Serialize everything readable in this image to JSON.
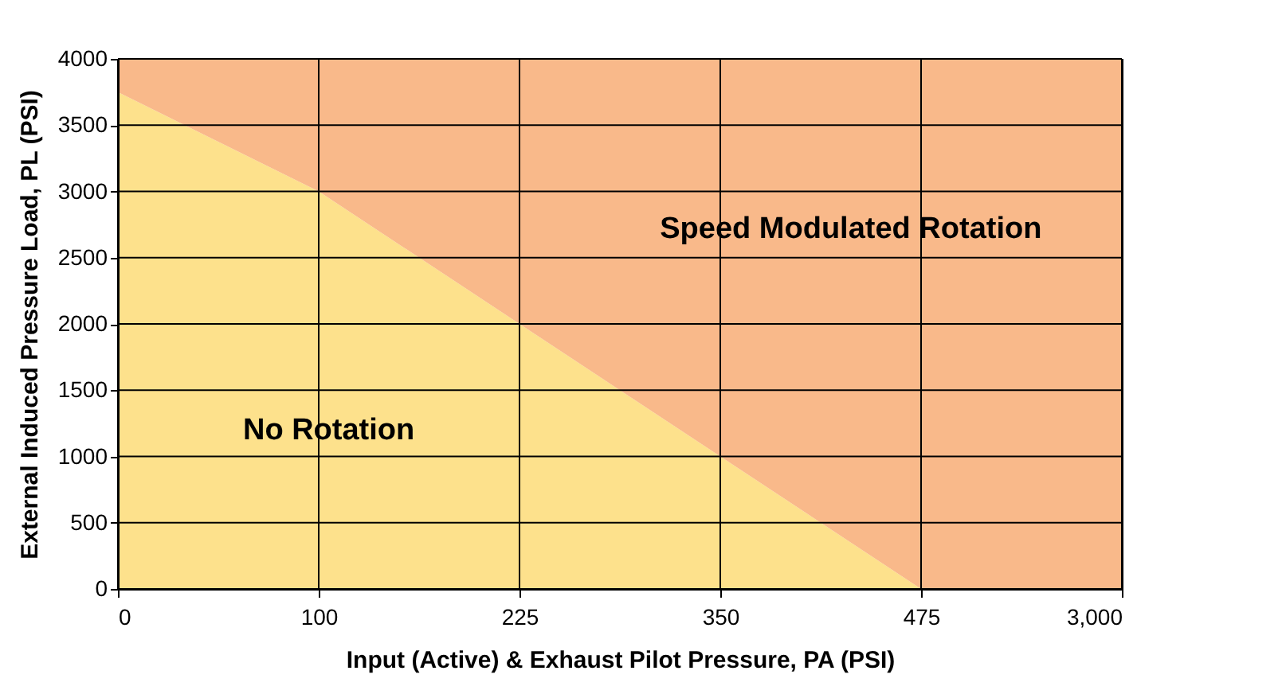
{
  "chart_data": {
    "type": "area",
    "stacked": true,
    "xlabel": "Input (Active) & Exhaust Pilot Pressure, PA (PSI)",
    "ylabel": "External Induced Pressure Load, PL (PSI)",
    "categories": [
      "0",
      "100",
      "225",
      "350",
      "475",
      "3,000"
    ],
    "series": [
      {
        "color": "#fde18c",
        "values": [
          3750,
          3000,
          2000,
          1000,
          0,
          0
        ]
      },
      {
        "color": "#f9b98a",
        "values": [
          250,
          1000,
          2000,
          3000,
          4000,
          4000
        ]
      }
    ],
    "ylim": [
      0,
      4000
    ],
    "yticks": [
      0,
      500,
      1000,
      1500,
      2000,
      2500,
      3000,
      3500,
      4000
    ],
    "grid": true,
    "legend": false,
    "annotations": [
      "No Rotation",
      "Speed Modulated Rotation"
    ]
  }
}
